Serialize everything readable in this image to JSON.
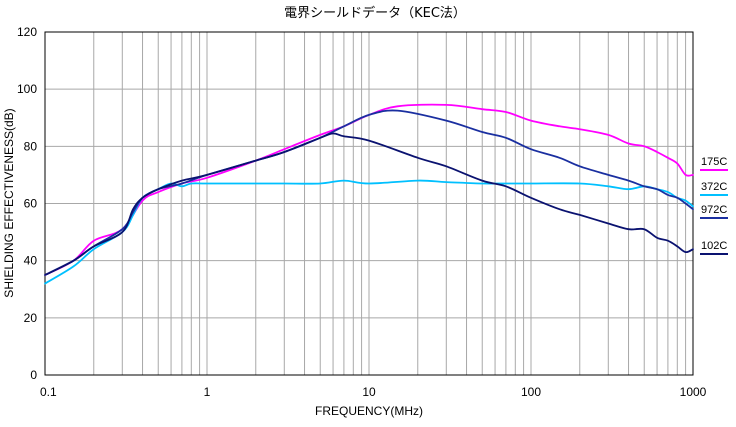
{
  "chart_data": {
    "type": "line",
    "title": "電界シールドデータ（KEC法）",
    "xlabel": "FREQUENCY(MHz)",
    "ylabel": "SHIELDING EFFECTIVENESS(dB)",
    "x_scale": "log",
    "xlim": [
      0.1,
      1000
    ],
    "ylim": [
      0,
      120
    ],
    "x_ticks": [
      0.1,
      1,
      10,
      100,
      1000
    ],
    "x_tick_labels": [
      "0.1",
      "1",
      "10",
      "100",
      "1000"
    ],
    "y_ticks": [
      0,
      20,
      40,
      60,
      80,
      100,
      120
    ],
    "y_tick_labels": [
      "0",
      "20",
      "40",
      "60",
      "80",
      "100",
      "120"
    ],
    "grid": true,
    "legend_placement": "right",
    "series": [
      {
        "name": "175C",
        "color": "#ff00ff",
        "points": [
          [
            0.1,
            35
          ],
          [
            0.15,
            40
          ],
          [
            0.2,
            47
          ],
          [
            0.3,
            51
          ],
          [
            0.4,
            61
          ],
          [
            0.5,
            64
          ],
          [
            0.7,
            67
          ],
          [
            1,
            69
          ],
          [
            2,
            75
          ],
          [
            3,
            79
          ],
          [
            5,
            84
          ],
          [
            7,
            87
          ],
          [
            10,
            91
          ],
          [
            15,
            94
          ],
          [
            30,
            94.5
          ],
          [
            50,
            93
          ],
          [
            70,
            92
          ],
          [
            100,
            89
          ],
          [
            150,
            87
          ],
          [
            200,
            86
          ],
          [
            300,
            84
          ],
          [
            400,
            81
          ],
          [
            500,
            80
          ],
          [
            600,
            78
          ],
          [
            700,
            76
          ],
          [
            800,
            74
          ],
          [
            900,
            70
          ],
          [
            1000,
            70
          ]
        ]
      },
      {
        "name": "372C",
        "color": "#00c0ff",
        "points": [
          [
            0.1,
            32
          ],
          [
            0.15,
            38
          ],
          [
            0.2,
            44
          ],
          [
            0.3,
            50
          ],
          [
            0.35,
            56
          ],
          [
            0.4,
            62
          ],
          [
            0.5,
            65
          ],
          [
            0.6,
            67
          ],
          [
            0.7,
            66
          ],
          [
            0.8,
            67
          ],
          [
            1,
            67
          ],
          [
            2,
            67
          ],
          [
            3,
            67
          ],
          [
            5,
            67
          ],
          [
            7,
            68
          ],
          [
            10,
            67
          ],
          [
            20,
            68
          ],
          [
            30,
            67.5
          ],
          [
            50,
            67
          ],
          [
            70,
            67
          ],
          [
            100,
            67
          ],
          [
            200,
            67
          ],
          [
            300,
            66
          ],
          [
            400,
            65
          ],
          [
            500,
            66
          ],
          [
            600,
            65
          ],
          [
            700,
            64
          ],
          [
            800,
            62
          ],
          [
            900,
            61
          ],
          [
            1000,
            59
          ]
        ]
      },
      {
        "name": "972C",
        "color": "#1a2fa0",
        "points": [
          [
            0.1,
            35
          ],
          [
            0.15,
            40
          ],
          [
            0.2,
            45
          ],
          [
            0.3,
            51
          ],
          [
            0.35,
            57
          ],
          [
            0.4,
            62
          ],
          [
            0.5,
            65
          ],
          [
            0.7,
            67
          ],
          [
            1,
            70
          ],
          [
            2,
            75
          ],
          [
            3,
            78
          ],
          [
            5,
            83
          ],
          [
            7,
            87
          ],
          [
            10,
            91
          ],
          [
            15,
            92.5
          ],
          [
            30,
            89
          ],
          [
            50,
            85
          ],
          [
            70,
            83
          ],
          [
            100,
            79
          ],
          [
            150,
            76
          ],
          [
            200,
            73
          ],
          [
            300,
            70
          ],
          [
            400,
            68
          ],
          [
            500,
            66
          ],
          [
            600,
            65
          ],
          [
            700,
            63
          ],
          [
            800,
            62
          ],
          [
            900,
            60
          ],
          [
            1000,
            58
          ]
        ]
      },
      {
        "name": "102C",
        "color": "#0a1270",
        "points": [
          [
            0.1,
            35
          ],
          [
            0.15,
            40
          ],
          [
            0.2,
            45
          ],
          [
            0.3,
            50
          ],
          [
            0.35,
            58
          ],
          [
            0.4,
            62
          ],
          [
            0.5,
            65
          ],
          [
            0.7,
            68
          ],
          [
            1,
            70
          ],
          [
            2,
            75
          ],
          [
            3,
            78
          ],
          [
            5,
            83
          ],
          [
            6,
            84.5
          ],
          [
            7,
            83.5
          ],
          [
            10,
            82
          ],
          [
            20,
            76
          ],
          [
            30,
            73
          ],
          [
            50,
            68
          ],
          [
            70,
            66
          ],
          [
            100,
            62
          ],
          [
            150,
            58
          ],
          [
            200,
            56
          ],
          [
            300,
            53
          ],
          [
            400,
            51
          ],
          [
            500,
            51
          ],
          [
            600,
            48
          ],
          [
            700,
            47
          ],
          [
            800,
            45
          ],
          [
            900,
            43
          ],
          [
            1000,
            44
          ]
        ]
      }
    ]
  }
}
